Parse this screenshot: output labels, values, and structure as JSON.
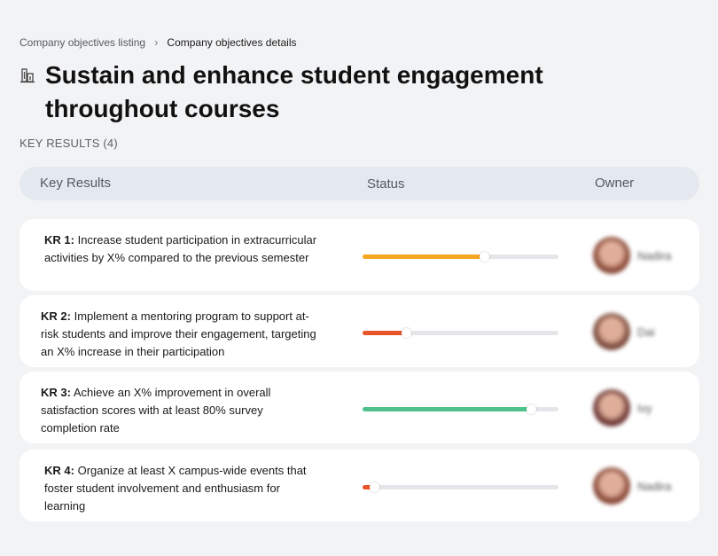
{
  "breadcrumb": {
    "parent": "Company objectives listing",
    "separator": "›",
    "current": "Company objectives details"
  },
  "title": {
    "icon": "building-icon",
    "text": "Sustain and enhance student engagement throughout courses"
  },
  "key_results_count_label": "KEY RESULTS (4)",
  "table": {
    "columns": [
      "Key Results",
      "Status",
      "Owner"
    ]
  },
  "key_results": [
    {
      "label": "KR 1:",
      "text": "Increase student participation in extracurricular activities by X% compared to the previous semester",
      "progress": 0.62,
      "color": "#f5a623",
      "owner": "Nadira",
      "avatar_color": "#8a4a3a"
    },
    {
      "label": "KR 2:",
      "text": "Implement a mentoring program to support at-risk students and improve their engagement, targeting an X% increase in their participation",
      "progress": 0.22,
      "color": "#e8552a",
      "owner": "Dai",
      "avatar_color": "#7a4a3c"
    },
    {
      "label": "KR 3:",
      "text": "Achieve an X% improvement in overall satisfaction scores with at least 80% survey completion rate",
      "progress": 0.86,
      "color": "#4fc28b",
      "owner": "Ivy",
      "avatar_color": "#6e3a36"
    },
    {
      "label": "KR 4:",
      "text": "Organize at least X campus-wide events that foster student involvement and enthusiasm for learning",
      "progress": 0.06,
      "color": "#e8552a",
      "owner": "Nadira",
      "avatar_color": "#8a4a3a"
    }
  ]
}
